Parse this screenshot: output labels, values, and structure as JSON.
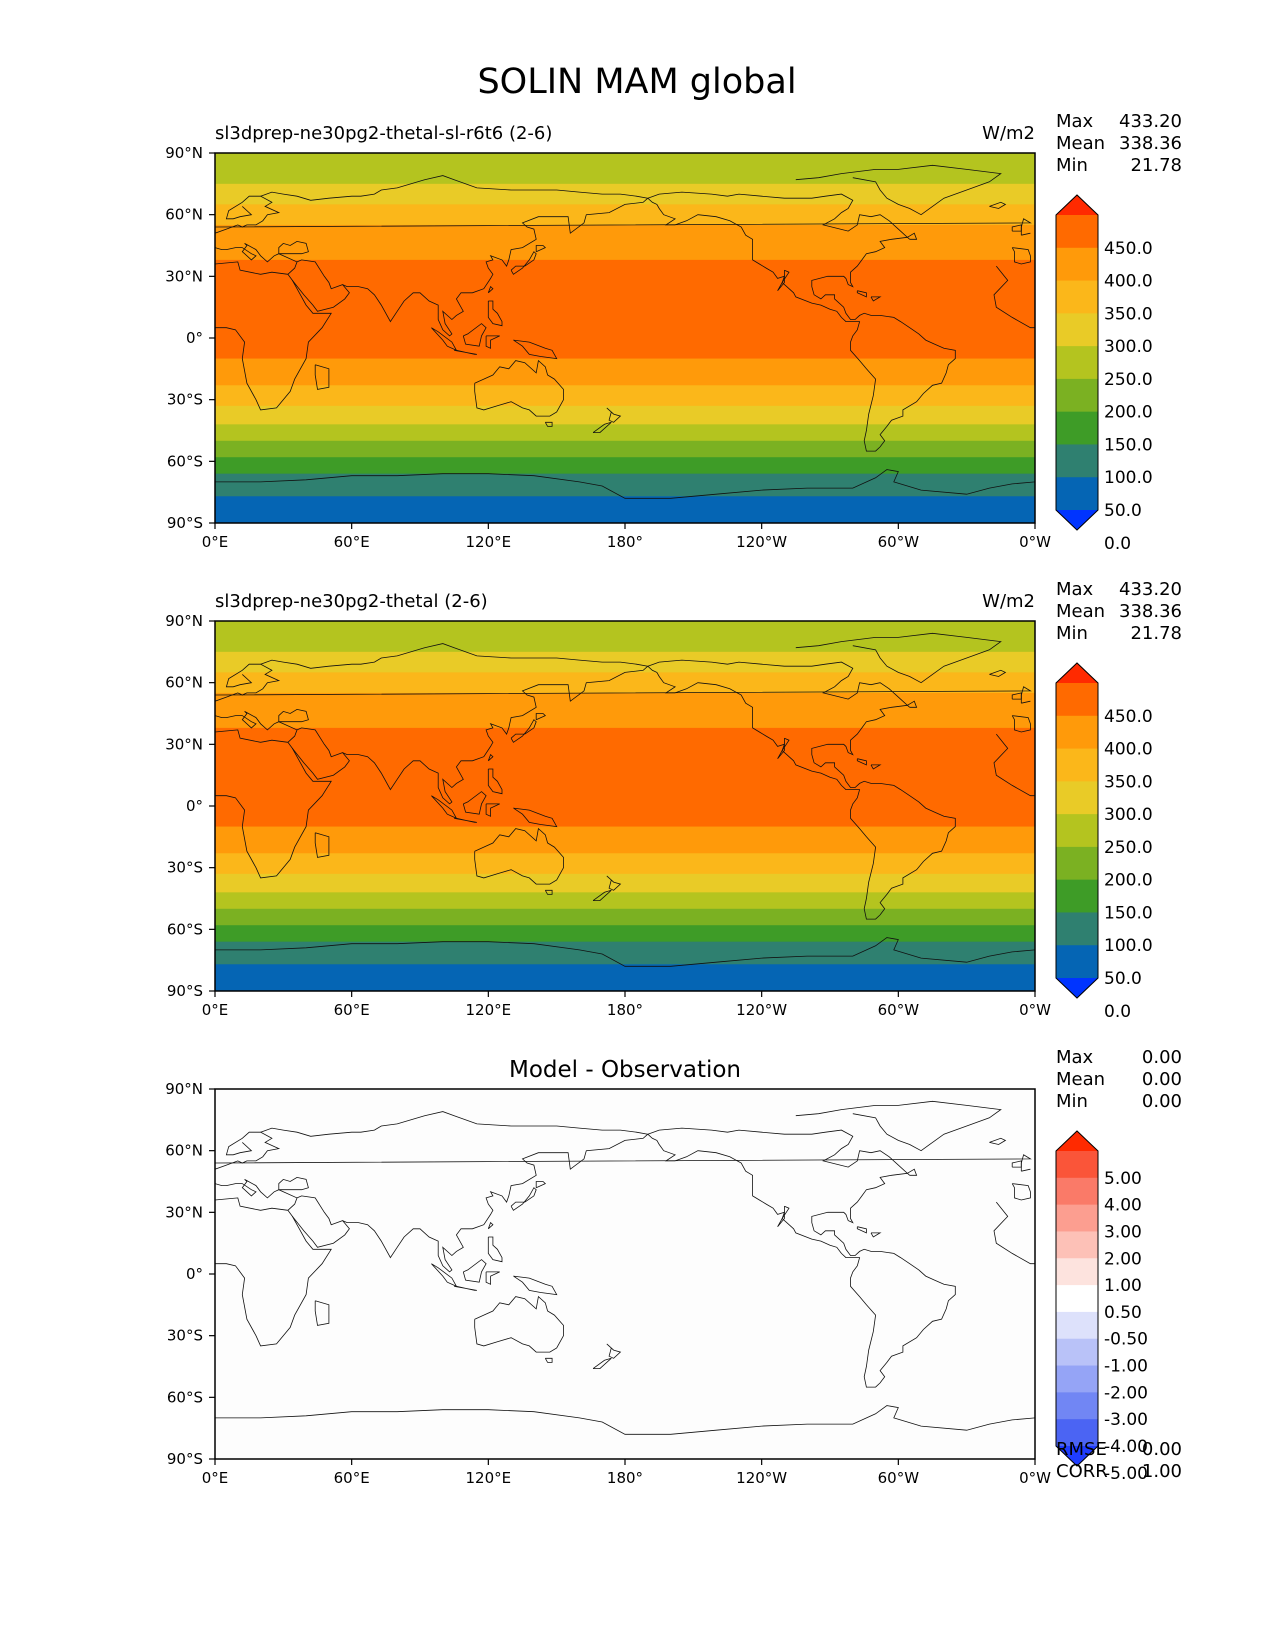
{
  "figure_title": "SOLIN MAM global",
  "chart_data": [
    {
      "type": "heatmap",
      "title": "sl3dprep-ne30pg2-thetal-sl-r6t6 (2-6)",
      "units": "W/m2",
      "stats": {
        "max_label": "Max",
        "max": "433.20",
        "mean_label": "Mean",
        "mean": "338.36",
        "min_label": "Min",
        "min": "21.78"
      },
      "x_ticks": [
        "0°E",
        "60°E",
        "120°E",
        "180°",
        "120°W",
        "60°W",
        "0°W"
      ],
      "y_ticks": [
        "90°N",
        "60°N",
        "30°N",
        "0°",
        "30°S",
        "60°S",
        "90°S"
      ],
      "xlim": [
        0,
        360
      ],
      "ylim": [
        -90,
        90
      ],
      "colorbar": {
        "ticks": [
          "450.0",
          "400.0",
          "350.0",
          "300.0",
          "250.0",
          "200.0",
          "150.0",
          "100.0",
          "50.0",
          "0.0"
        ],
        "colors": [
          "#ff2a00",
          "#ff6a00",
          "#ff9a0a",
          "#fbb71a",
          "#e9cb27",
          "#b4c41f",
          "#7bb122",
          "#3e9c27",
          "#2f8070",
          "#0565b4",
          "#0034ff"
        ],
        "extend": "both"
      },
      "bands": [
        {
          "lat_from": 90,
          "lat_to": 75,
          "value_range": "200-250",
          "color": "#b4c41f"
        },
        {
          "lat_from": 75,
          "lat_to": 65,
          "value_range": "250-300",
          "color": "#e9cb27"
        },
        {
          "lat_from": 65,
          "lat_to": 55,
          "value_range": "300-350",
          "color": "#fbb71a"
        },
        {
          "lat_from": 55,
          "lat_to": 38,
          "value_range": "350-400",
          "color": "#ff9a0a"
        },
        {
          "lat_from": 38,
          "lat_to": -10,
          "value_range": "400-450",
          "color": "#ff6a00"
        },
        {
          "lat_from": -10,
          "lat_to": -23,
          "value_range": "350-400",
          "color": "#ff9a0a"
        },
        {
          "lat_from": -23,
          "lat_to": -33,
          "value_range": "300-350",
          "color": "#fbb71a"
        },
        {
          "lat_from": -33,
          "lat_to": -42,
          "value_range": "250-300",
          "color": "#e9cb27"
        },
        {
          "lat_from": -42,
          "lat_to": -50,
          "value_range": "200-250",
          "color": "#b4c41f"
        },
        {
          "lat_from": -50,
          "lat_to": -58,
          "value_range": "150-200",
          "color": "#7bb122"
        },
        {
          "lat_from": -58,
          "lat_to": -66,
          "value_range": "100-150",
          "color": "#3e9c27"
        },
        {
          "lat_from": -66,
          "lat_to": -77,
          "value_range": "50-100",
          "color": "#2f8070"
        },
        {
          "lat_from": -77,
          "lat_to": -90,
          "value_range": "0-50",
          "color": "#0565b4"
        }
      ]
    },
    {
      "type": "heatmap",
      "title": "sl3dprep-ne30pg2-thetal (2-6)",
      "units": "W/m2",
      "stats": {
        "max_label": "Max",
        "max": "433.20",
        "mean_label": "Mean",
        "mean": "338.36",
        "min_label": "Min",
        "min": "21.78"
      },
      "x_ticks": [
        "0°E",
        "60°E",
        "120°E",
        "180°",
        "120°W",
        "60°W",
        "0°W"
      ],
      "y_ticks": [
        "90°N",
        "60°N",
        "30°N",
        "0°",
        "30°S",
        "60°S",
        "90°S"
      ],
      "xlim": [
        0,
        360
      ],
      "ylim": [
        -90,
        90
      ],
      "colorbar": {
        "ticks": [
          "450.0",
          "400.0",
          "350.0",
          "300.0",
          "250.0",
          "200.0",
          "150.0",
          "100.0",
          "50.0",
          "0.0"
        ],
        "colors": [
          "#ff2a00",
          "#ff6a00",
          "#ff9a0a",
          "#fbb71a",
          "#e9cb27",
          "#b4c41f",
          "#7bb122",
          "#3e9c27",
          "#2f8070",
          "#0565b4",
          "#0034ff"
        ],
        "extend": "both"
      },
      "bands": [
        {
          "lat_from": 90,
          "lat_to": 75,
          "value_range": "200-250",
          "color": "#b4c41f"
        },
        {
          "lat_from": 75,
          "lat_to": 65,
          "value_range": "250-300",
          "color": "#e9cb27"
        },
        {
          "lat_from": 65,
          "lat_to": 55,
          "value_range": "300-350",
          "color": "#fbb71a"
        },
        {
          "lat_from": 55,
          "lat_to": 38,
          "value_range": "350-400",
          "color": "#ff9a0a"
        },
        {
          "lat_from": 38,
          "lat_to": -10,
          "value_range": "400-450",
          "color": "#ff6a00"
        },
        {
          "lat_from": -10,
          "lat_to": -23,
          "value_range": "350-400",
          "color": "#ff9a0a"
        },
        {
          "lat_from": -23,
          "lat_to": -33,
          "value_range": "300-350",
          "color": "#fbb71a"
        },
        {
          "lat_from": -33,
          "lat_to": -42,
          "value_range": "250-300",
          "color": "#e9cb27"
        },
        {
          "lat_from": -42,
          "lat_to": -50,
          "value_range": "200-250",
          "color": "#b4c41f"
        },
        {
          "lat_from": -50,
          "lat_to": -58,
          "value_range": "150-200",
          "color": "#7bb122"
        },
        {
          "lat_from": -58,
          "lat_to": -66,
          "value_range": "100-150",
          "color": "#3e9c27"
        },
        {
          "lat_from": -66,
          "lat_to": -77,
          "value_range": "50-100",
          "color": "#2f8070"
        },
        {
          "lat_from": -77,
          "lat_to": -90,
          "value_range": "0-50",
          "color": "#0565b4"
        }
      ]
    },
    {
      "type": "heatmap",
      "title": "Model - Observation",
      "units": "",
      "stats": {
        "max_label": "Max",
        "max": "0.00",
        "mean_label": "Mean",
        "mean": "0.00",
        "min_label": "Min",
        "min": "0.00"
      },
      "extra_stats": {
        "rmse_label": "RMSE",
        "rmse": "0.00",
        "corr_label": "CORR",
        "corr": "1.00"
      },
      "x_ticks": [
        "0°E",
        "60°E",
        "120°E",
        "180°",
        "120°W",
        "60°W",
        "0°W"
      ],
      "y_ticks": [
        "90°N",
        "60°N",
        "30°N",
        "0°",
        "30°S",
        "60°S",
        "90°S"
      ],
      "xlim": [
        0,
        360
      ],
      "ylim": [
        -90,
        90
      ],
      "colorbar": {
        "ticks": [
          "5.00",
          "4.00",
          "3.00",
          "2.00",
          "1.00",
          "0.50",
          "-0.50",
          "-1.00",
          "-2.00",
          "-3.00",
          "-4.00",
          "-5.00"
        ],
        "colors": [
          "#ff2a00",
          "#fa5539",
          "#fa7a68",
          "#fc9e90",
          "#fdc1b7",
          "#fde3de",
          "#ffffff",
          "#dde1fb",
          "#b9c2f8",
          "#95a4f6",
          "#7186f4",
          "#4b64f3",
          "#1f3dff"
        ],
        "extend": "both"
      },
      "bands": [
        {
          "lat_from": 90,
          "lat_to": -90,
          "value_range": "-0.50-0.50",
          "color": "#fdfdfd"
        }
      ]
    }
  ]
}
